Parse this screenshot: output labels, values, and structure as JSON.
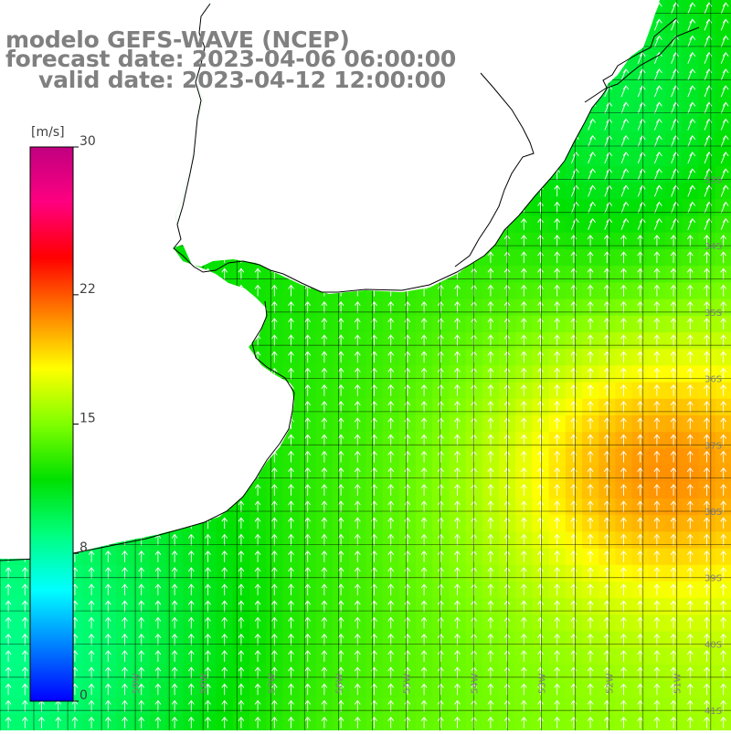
{
  "map": {
    "title": "modelo GEFS-WAVE (NCEP)",
    "forecast_line": "forecast date: 2023-04-06 06:00:00",
    "valid_line": "valid date: 2023-04-12 12:00:00",
    "colorbar": {
      "unit": "[m/s]",
      "ticks": [
        "30",
        "22",
        "15",
        "8",
        "0"
      ],
      "tick_values": [
        30,
        22,
        15,
        8,
        0
      ],
      "range": [
        0,
        30
      ],
      "colors": [
        "#0000ff",
        "#0080ff",
        "#00ffff",
        "#00ff80",
        "#00e000",
        "#80ff00",
        "#ffff00",
        "#ff8000",
        "#ff0000",
        "#ff0080",
        "#c00080"
      ]
    },
    "lat_labels": [
      "33S",
      "34S",
      "35S",
      "36S",
      "37S",
      "38S",
      "39S",
      "40S",
      "41S"
    ],
    "lon_labels": [
      "59W",
      "58W",
      "57W",
      "56W",
      "55W",
      "54W",
      "53W",
      "52W",
      "51W"
    ],
    "extent": {
      "lon_min": -61.0,
      "lon_max": -50.2,
      "lat_min": -41.3,
      "lat_max": -30.3
    },
    "wind_direction": "from south (arrows point north)",
    "colors": {
      "land": "#ffffff",
      "coast": "#000000",
      "grid": "#000000",
      "label": "#808080"
    }
  }
}
